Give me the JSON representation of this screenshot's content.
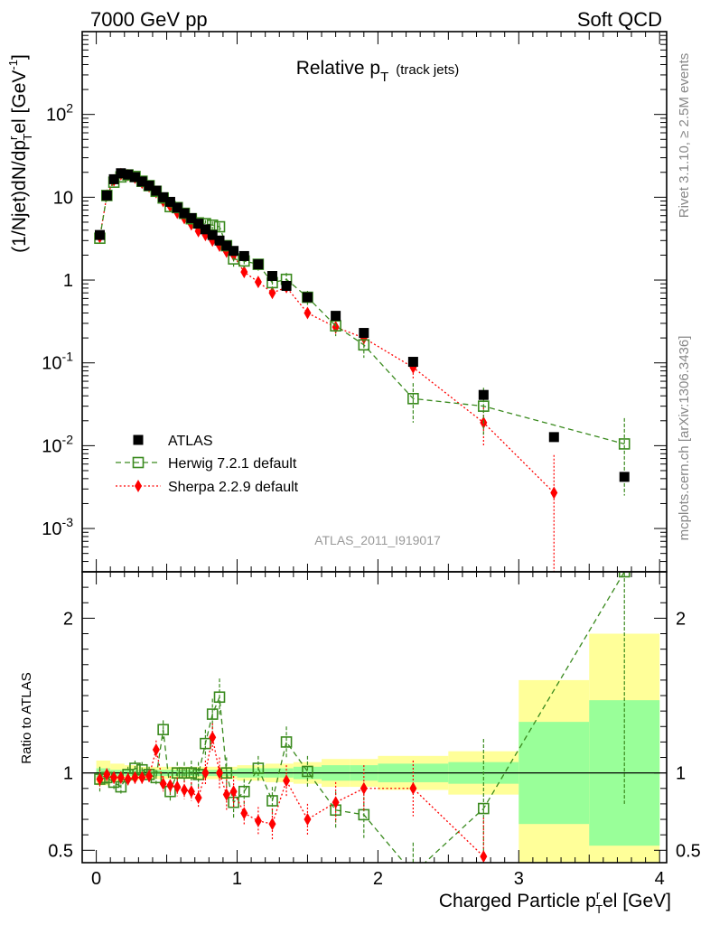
{
  "header": {
    "left": "7000 GeV pp",
    "right": "Soft QCD"
  },
  "side": {
    "rivet": "Rivet 3.1.10, ≥ 2.5M events",
    "mcplots": "mcplots.cern.ch [arXiv:1306.3436]"
  },
  "chart_data": [
    {
      "type": "scatter",
      "panel": "main",
      "title_main": "Relative p",
      "title_sub": "T",
      "title_note": "(track jets)",
      "ylabel_pre": "(1/Njet)dN/dp",
      "ylabel_sup": "r",
      "ylabel_sub": "T",
      "ylabel_post": "el [GeV",
      "ylabel_unit_sup": "-1",
      "ylabel_end": "]",
      "yscale": "log",
      "xlim": [
        -0.1,
        4.05
      ],
      "ylim": [
        0.0003,
        1000
      ],
      "y_ticks": [
        {
          "v": 0.001,
          "base": "10",
          "exp": "-3"
        },
        {
          "v": 0.01,
          "base": "10",
          "exp": "-2"
        },
        {
          "v": 0.1,
          "base": "10",
          "exp": "-1"
        },
        {
          "v": 1,
          "base": "1",
          "exp": ""
        },
        {
          "v": 10,
          "base": "10",
          "exp": ""
        },
        {
          "v": 100,
          "base": "10",
          "exp": "2"
        }
      ],
      "watermark": "ATLAS_2011_I919017",
      "legend_position": "bottom-left",
      "series": [
        {
          "name": "ATLAS",
          "color": "#000000",
          "marker": "filled-square",
          "x": [
            0.025,
            0.075,
            0.125,
            0.175,
            0.225,
            0.275,
            0.325,
            0.375,
            0.425,
            0.475,
            0.525,
            0.575,
            0.625,
            0.675,
            0.725,
            0.775,
            0.825,
            0.875,
            0.925,
            0.975,
            1.05,
            1.15,
            1.25,
            1.35,
            1.5,
            1.7,
            1.9,
            2.25,
            2.75,
            3.25,
            3.75
          ],
          "y": [
            3.5,
            10.5,
            16.5,
            19.5,
            18.8,
            17.5,
            15.5,
            13.8,
            12.0,
            10.0,
            8.8,
            7.5,
            6.4,
            5.6,
            4.8,
            4.1,
            3.5,
            3.0,
            2.6,
            2.25,
            1.95,
            1.55,
            1.12,
            0.85,
            0.62,
            0.37,
            0.23,
            0.103,
            0.041,
            0.0127,
            0.0042
          ]
        },
        {
          "name": "Herwig 7.2.1 default",
          "color": "#3a8a1e",
          "marker": "open-square",
          "line": "dashed",
          "x": [
            0.025,
            0.075,
            0.125,
            0.175,
            0.225,
            0.275,
            0.325,
            0.375,
            0.425,
            0.475,
            0.525,
            0.575,
            0.625,
            0.675,
            0.725,
            0.775,
            0.825,
            0.875,
            0.925,
            0.975,
            1.05,
            1.15,
            1.25,
            1.35,
            1.5,
            1.7,
            1.9,
            2.25,
            2.75,
            3.75
          ],
          "y": [
            3.2,
            10.5,
            15.2,
            17.6,
            18.6,
            17.8,
            15.6,
            13.8,
            11.8,
            9.8,
            7.7,
            7.5,
            6.4,
            5.5,
            4.9,
            4.8,
            4.6,
            4.4,
            2.6,
            1.8,
            1.7,
            1.55,
            0.93,
            1.02,
            0.62,
            0.28,
            0.165,
            0.037,
            0.03,
            0.0105
          ],
          "yerr_lo": [
            0.2,
            0.5,
            0.8,
            0.9,
            0.9,
            0.9,
            0.9,
            0.8,
            0.7,
            0.7,
            0.6,
            0.6,
            0.5,
            0.5,
            0.5,
            0.5,
            0.5,
            0.5,
            0.4,
            0.35,
            0.3,
            0.25,
            0.2,
            0.2,
            0.12,
            0.07,
            0.05,
            0.018,
            0.017,
            0.008
          ],
          "yerr_hi": [
            0.2,
            0.5,
            0.8,
            0.9,
            0.9,
            0.9,
            0.9,
            0.8,
            0.7,
            0.7,
            0.6,
            0.6,
            0.5,
            0.5,
            0.5,
            0.5,
            0.5,
            0.5,
            0.4,
            0.35,
            0.3,
            0.25,
            0.2,
            0.2,
            0.12,
            0.07,
            0.06,
            0.02,
            0.02,
            0.011
          ]
        },
        {
          "name": "Sherpa 2.2.9 default",
          "color": "#ff0000",
          "marker": "filled-diamond",
          "line": "dotted",
          "x": [
            0.025,
            0.075,
            0.125,
            0.175,
            0.225,
            0.275,
            0.325,
            0.375,
            0.425,
            0.475,
            0.525,
            0.575,
            0.625,
            0.675,
            0.725,
            0.775,
            0.825,
            0.875,
            0.925,
            0.975,
            1.05,
            1.15,
            1.25,
            1.35,
            1.5,
            1.7,
            1.9,
            2.25,
            2.75,
            3.25
          ],
          "y": [
            3.3,
            10.5,
            16.0,
            19.0,
            18.5,
            17.2,
            15.0,
            13.5,
            11.5,
            9.0,
            7.8,
            6.5,
            5.6,
            4.7,
            3.9,
            3.5,
            3.0,
            2.6,
            2.2,
            2.0,
            1.25,
            0.95,
            0.7,
            0.82,
            0.4,
            0.27,
            0.2,
            0.088,
            0.019,
            0.0027
          ],
          "yerr_lo": [
            0.2,
            0.4,
            0.6,
            0.7,
            0.7,
            0.7,
            0.7,
            0.6,
            0.6,
            0.5,
            0.5,
            0.5,
            0.4,
            0.4,
            0.4,
            0.4,
            0.3,
            0.3,
            0.3,
            0.3,
            0.15,
            0.12,
            0.1,
            0.1,
            0.06,
            0.05,
            0.04,
            0.025,
            0.009,
            0.0027
          ],
          "yerr_hi": [
            0.2,
            0.4,
            0.6,
            0.7,
            0.7,
            0.7,
            0.7,
            0.6,
            0.6,
            0.5,
            0.5,
            0.5,
            0.4,
            0.4,
            0.4,
            0.4,
            0.3,
            0.3,
            0.3,
            0.3,
            0.15,
            0.12,
            0.1,
            0.1,
            0.06,
            0.05,
            0.04,
            0.025,
            0.01,
            0.005
          ]
        }
      ]
    },
    {
      "type": "scatter",
      "panel": "ratio",
      "ylabel": "Ratio to ATLAS",
      "xlabel_pre": "Charged Particle p",
      "xlabel_sup": "r",
      "xlabel_sub": "T",
      "xlabel_post": "el [GeV]",
      "xlim": [
        -0.1,
        4.05
      ],
      "ylim": [
        0.42,
        2.3
      ],
      "x_ticks": [
        0,
        1,
        2,
        3,
        4
      ],
      "y_ticks": [
        0.5,
        1,
        2
      ],
      "bands": {
        "x_edges": [
          0.0,
          0.1,
          0.2,
          0.3,
          0.4,
          0.5,
          0.6,
          0.7,
          0.8,
          0.9,
          1.0,
          1.1,
          1.2,
          1.3,
          1.4,
          1.6,
          1.8,
          2.0,
          2.5,
          3.0,
          3.5,
          4.0
        ],
        "inner_half": [
          0.03,
          0.02,
          0.02,
          0.02,
          0.02,
          0.02,
          0.02,
          0.02,
          0.02,
          0.02,
          0.03,
          0.03,
          0.03,
          0.03,
          0.04,
          0.05,
          0.05,
          0.06,
          0.07,
          0.33,
          0.47
        ],
        "outer_half": [
          0.08,
          0.06,
          0.05,
          0.04,
          0.04,
          0.04,
          0.04,
          0.04,
          0.04,
          0.04,
          0.05,
          0.05,
          0.06,
          0.06,
          0.07,
          0.09,
          0.09,
          0.11,
          0.14,
          0.6,
          0.9
        ],
        "inner_color": "#99ff99",
        "outer_color": "#ffff99"
      },
      "series": [
        {
          "name": "Herwig 7.2.1 default",
          "color": "#3a8a1e",
          "x": [
            0.025,
            0.075,
            0.125,
            0.175,
            0.225,
            0.275,
            0.325,
            0.375,
            0.425,
            0.475,
            0.525,
            0.575,
            0.625,
            0.675,
            0.725,
            0.775,
            0.825,
            0.875,
            0.925,
            0.975,
            1.05,
            1.15,
            1.25,
            1.35,
            1.5,
            1.7,
            1.9,
            2.25,
            2.75,
            3.75
          ],
          "y": [
            0.96,
            0.97,
            0.94,
            0.91,
            0.99,
            1.03,
            1.02,
            0.99,
            0.97,
            1.28,
            0.88,
            1.0,
            1.0,
            1.0,
            0.99,
            1.19,
            1.38,
            1.49,
            1.0,
            0.81,
            0.88,
            1.03,
            0.82,
            1.2,
            1.01,
            0.76,
            0.73,
            0.35,
            0.77,
            2.3
          ],
          "yerr": [
            0.08,
            0.05,
            0.05,
            0.05,
            0.05,
            0.05,
            0.05,
            0.05,
            0.05,
            0.06,
            0.07,
            0.07,
            0.07,
            0.08,
            0.08,
            0.09,
            0.1,
            0.12,
            0.1,
            0.1,
            0.08,
            0.08,
            0.09,
            0.1,
            0.1,
            0.12,
            0.15,
            0.2,
            0.45,
            1.5
          ]
        },
        {
          "name": "Sherpa 2.2.9 default",
          "color": "#ff0000",
          "x": [
            0.025,
            0.075,
            0.125,
            0.175,
            0.225,
            0.275,
            0.325,
            0.375,
            0.425,
            0.475,
            0.525,
            0.575,
            0.625,
            0.675,
            0.725,
            0.775,
            0.825,
            0.875,
            0.925,
            0.975,
            1.05,
            1.15,
            1.25,
            1.35,
            1.5,
            1.7,
            1.9,
            2.25,
            2.75
          ],
          "y": [
            0.96,
            0.99,
            0.97,
            0.97,
            0.96,
            0.97,
            0.97,
            0.98,
            1.15,
            0.93,
            0.92,
            0.91,
            0.89,
            0.88,
            0.84,
            1.0,
            1.23,
            1.0,
            0.86,
            0.88,
            0.74,
            0.69,
            0.67,
            0.95,
            0.7,
            0.81,
            0.9,
            0.9,
            0.46
          ],
          "yerr": [
            0.06,
            0.04,
            0.04,
            0.04,
            0.04,
            0.04,
            0.04,
            0.04,
            0.06,
            0.05,
            0.06,
            0.06,
            0.06,
            0.06,
            0.07,
            0.08,
            0.09,
            0.1,
            0.1,
            0.1,
            0.08,
            0.09,
            0.1,
            0.1,
            0.1,
            0.13,
            0.15,
            0.18,
            0.25
          ]
        }
      ]
    }
  ]
}
